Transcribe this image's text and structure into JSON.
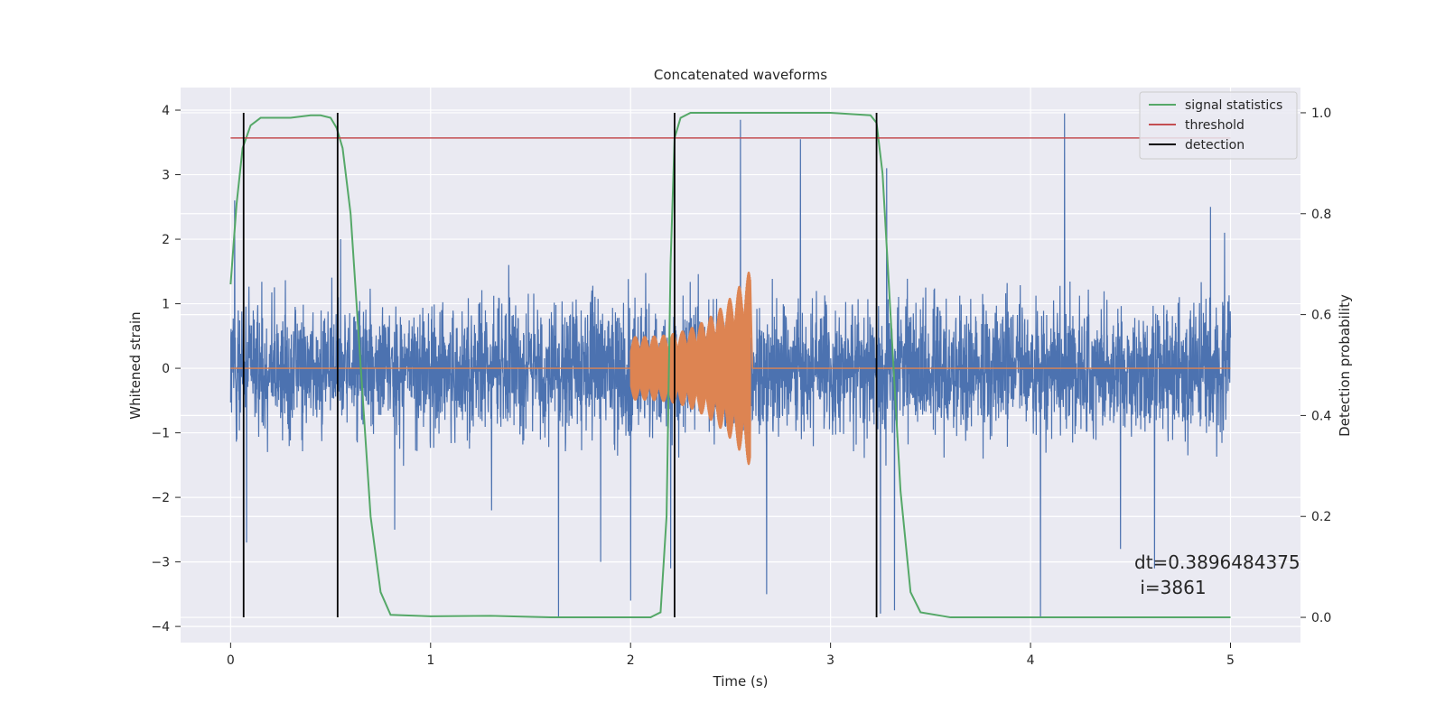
{
  "chart_data": {
    "type": "line",
    "title": "Concatenated waveforms",
    "xlabel": "Time (s)",
    "ylabel": "Whitened strain",
    "y2label": "Detection probability",
    "xlim": [
      -0.25,
      5.35
    ],
    "ylim": [
      -4.25,
      4.35
    ],
    "y2lim": [
      -0.05,
      1.05
    ],
    "xticks": [
      0,
      1,
      2,
      3,
      4,
      5
    ],
    "yticks": [
      -4,
      -3,
      -2,
      -1,
      0,
      1,
      2,
      3,
      4
    ],
    "y2ticks": [
      0.0,
      0.2,
      0.4,
      0.6,
      0.8,
      1.0
    ],
    "y2ticklabels": [
      "0.0",
      "0.2",
      "0.4",
      "0.6",
      "0.8",
      "1.0"
    ],
    "grid": true,
    "legend_position": "top-right",
    "noise": {
      "color": "#4c72b0",
      "x_range": [
        0,
        5
      ],
      "typical_abs_max": 2.2,
      "spikes": [
        {
          "x": 0.02,
          "y": 2.6
        },
        {
          "x": 0.08,
          "y": -2.7
        },
        {
          "x": 0.55,
          "y": 2.0
        },
        {
          "x": 0.82,
          "y": -2.5
        },
        {
          "x": 1.64,
          "y": -3.85
        },
        {
          "x": 1.85,
          "y": -3.0
        },
        {
          "x": 2.0,
          "y": -3.6
        },
        {
          "x": 2.2,
          "y": -3.1
        },
        {
          "x": 2.55,
          "y": 3.85
        },
        {
          "x": 2.68,
          "y": -3.5
        },
        {
          "x": 2.85,
          "y": 3.55
        },
        {
          "x": 3.25,
          "y": -3.8
        },
        {
          "x": 3.28,
          "y": 3.1
        },
        {
          "x": 3.32,
          "y": -3.75
        },
        {
          "x": 4.05,
          "y": -3.85
        },
        {
          "x": 4.17,
          "y": 3.95
        },
        {
          "x": 4.45,
          "y": -2.8
        },
        {
          "x": 4.62,
          "y": -3.1
        },
        {
          "x": 4.9,
          "y": 2.5
        },
        {
          "x": 4.97,
          "y": 2.1
        }
      ]
    },
    "injection": {
      "color": "#dd8452",
      "segments": [
        {
          "start": 2.0,
          "end": 2.6,
          "amp_start": 0.5,
          "amp_end": 1.55
        }
      ]
    },
    "series": [
      {
        "name": "signal statistics",
        "axis": "right",
        "color": "#55a868",
        "x": [
          0.0,
          0.03,
          0.06,
          0.1,
          0.15,
          0.2,
          0.3,
          0.4,
          0.45,
          0.5,
          0.53,
          0.56,
          0.6,
          0.65,
          0.7,
          0.75,
          0.8,
          1.0,
          1.3,
          1.6,
          1.9,
          2.1,
          2.15,
          2.18,
          2.2,
          2.22,
          2.25,
          2.3,
          2.5,
          2.8,
          3.0,
          3.2,
          3.23,
          3.26,
          3.3,
          3.35,
          3.4,
          3.45,
          3.6,
          4.0,
          4.5,
          5.0
        ],
        "y": [
          0.66,
          0.82,
          0.93,
          0.975,
          0.99,
          0.99,
          0.99,
          0.995,
          0.995,
          0.99,
          0.97,
          0.93,
          0.8,
          0.5,
          0.2,
          0.05,
          0.005,
          0.002,
          0.003,
          0.0,
          0.0,
          0.0,
          0.01,
          0.2,
          0.7,
          0.95,
          0.99,
          1.0,
          1.0,
          1.0,
          1.0,
          0.995,
          0.98,
          0.88,
          0.6,
          0.25,
          0.05,
          0.01,
          0.0,
          0.0,
          0.0,
          0.0
        ]
      },
      {
        "name": "threshold",
        "axis": "right",
        "color": "#c44e52",
        "x": [
          0.0,
          5.0
        ],
        "y": [
          0.95,
          0.95
        ]
      },
      {
        "name": "detection",
        "axis": "right",
        "color": "#000000",
        "type": "vlines",
        "x": [
          0.065,
          0.535,
          2.22,
          3.23
        ],
        "ymin": 0.0,
        "ymax": 1.0
      }
    ],
    "annotation": {
      "line1": "dt=0.3896484375",
      "line2": " i=3861"
    }
  }
}
